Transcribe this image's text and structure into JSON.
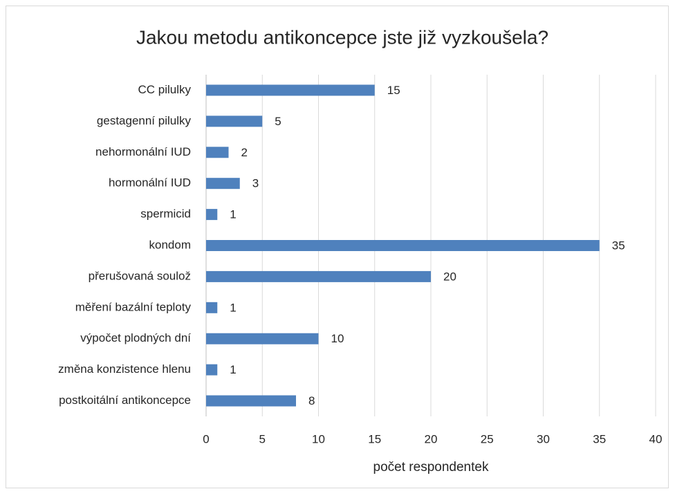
{
  "chart_data": {
    "type": "bar",
    "orientation": "horizontal",
    "title": "Jakou metodu antikoncepce jste již vyzkoušela?",
    "x_label": "počet respondentek",
    "categories": [
      "CC pilulky",
      "gestagenní pilulky",
      "nehormonální IUD",
      "hormonální IUD",
      "spermicid",
      "kondom",
      "přerušovaná soulož",
      "měření bazální teploty",
      "výpočet plodných dní",
      "změna konzistence hlenu",
      "postkoitální antikoncepce"
    ],
    "values": [
      15,
      5,
      2,
      3,
      1,
      35,
      20,
      1,
      10,
      1,
      8
    ],
    "color": "#4f81bd",
    "xlim": [
      0,
      40
    ],
    "xticks": [
      0,
      5,
      10,
      15,
      20,
      25,
      30,
      35,
      40
    ],
    "grid": true
  }
}
